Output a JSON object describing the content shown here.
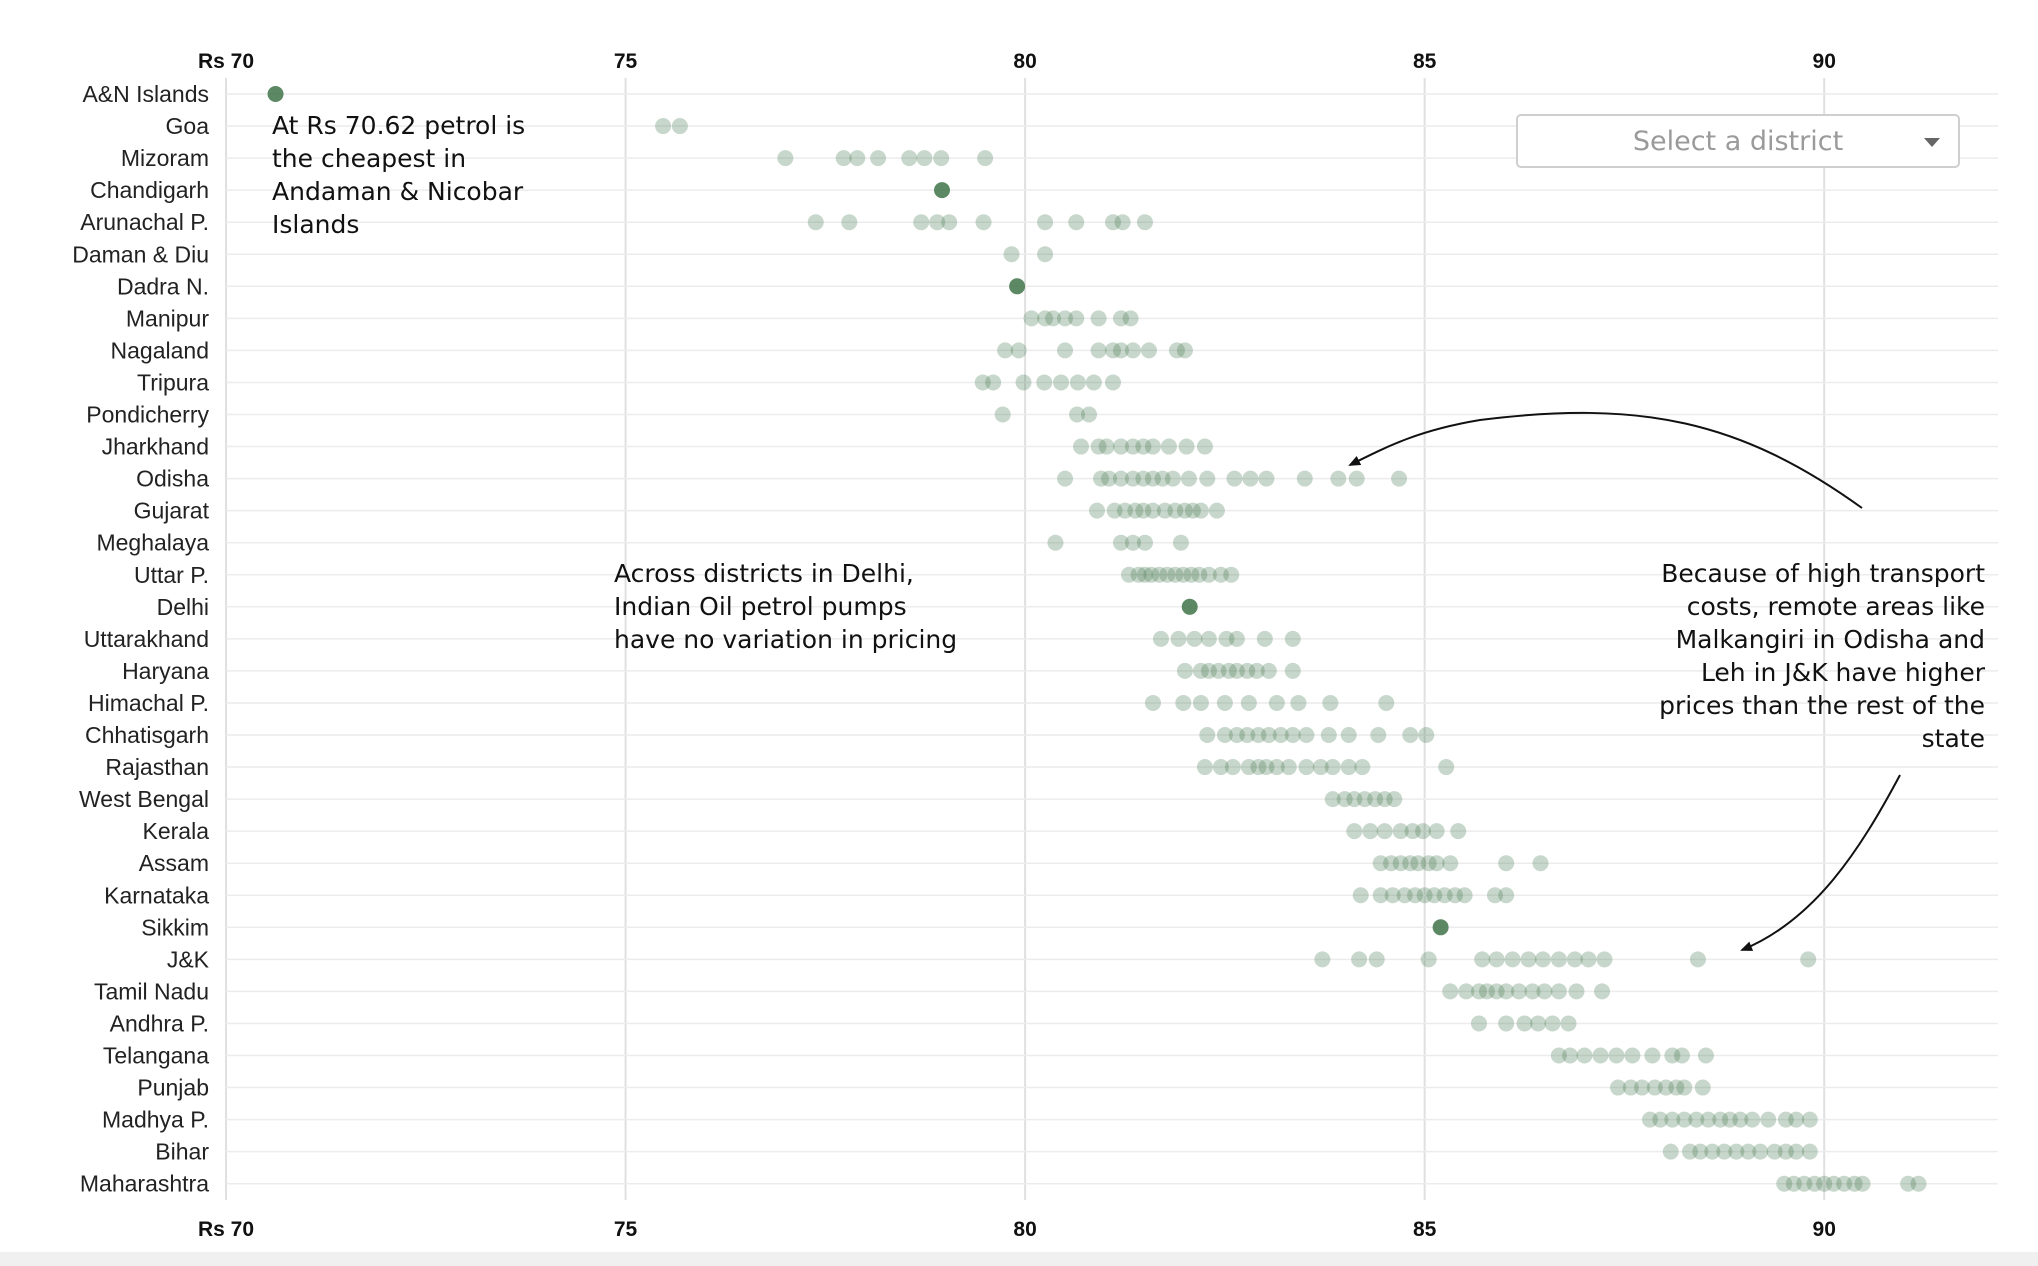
{
  "colors": {
    "dot": "#4a7b52",
    "grid": "#e0e0e0",
    "row": "#ececec",
    "arrow": "#111111"
  },
  "district_select": {
    "placeholder": "Select a district",
    "icon": "chevron-down-icon"
  },
  "annotations": [
    {
      "text": "At Rs 70.62 petrol is the cheapest in Andaman & Nicobar Islands"
    },
    {
      "text": "Across districts in Delhi, Indian Oil petrol pumps have no variation in pricing"
    },
    {
      "text": "Because of high transport costs, remote areas like Malkangiri in Odisha and Leh in J&K have higher prices than the rest of the state"
    }
  ],
  "chart_data": {
    "type": "scatter",
    "title": "",
    "xlabel": "",
    "ylabel": "",
    "xlim": [
      70,
      92.2
    ],
    "x_ticks": [
      70,
      75,
      80,
      85,
      90
    ],
    "x_tick_labels": [
      "Rs 70",
      "75",
      "80",
      "85",
      "90"
    ],
    "grid": true,
    "categories": [
      "A&N Islands",
      "Goa",
      "Mizoram",
      "Chandigarh",
      "Arunachal P.",
      "Daman & Diu",
      "Dadra N.",
      "Manipur",
      "Nagaland",
      "Tripura",
      "Pondicherry",
      "Jharkhand",
      "Odisha",
      "Gujarat",
      "Meghalaya",
      "Uttar P.",
      "Delhi",
      "Uttarakhand",
      "Haryana",
      "Himachal P.",
      "Chhatisgarh",
      "Rajasthan",
      "West Bengal",
      "Kerala",
      "Assam",
      "Karnataka",
      "Sikkim",
      "J&K",
      "Tamil Nadu",
      "Andhra P.",
      "Telangana",
      "Punjab",
      "Madhya P.",
      "Bihar",
      "Maharashtra"
    ],
    "series": [
      {
        "category": "A&N Islands",
        "values": [
          70.62
        ]
      },
      {
        "category": "Goa",
        "values": [
          75.47,
          75.68
        ]
      },
      {
        "category": "Mizoram",
        "values": [
          77.0,
          77.73,
          77.9,
          78.16,
          78.55,
          78.74,
          78.95,
          79.5
        ]
      },
      {
        "category": "Chandigarh",
        "values": [
          78.96
        ]
      },
      {
        "category": "Arunachal P.",
        "values": [
          77.38,
          77.8,
          78.7,
          78.9,
          79.05,
          79.48,
          80.25,
          80.64,
          81.1,
          81.22,
          81.5
        ]
      },
      {
        "category": "Daman & Diu",
        "values": [
          79.83,
          80.25
        ]
      },
      {
        "category": "Dadra N.",
        "values": [
          79.9
        ]
      },
      {
        "category": "Manipur",
        "values": [
          80.08,
          80.25,
          80.35,
          80.5,
          80.64,
          80.92,
          81.2,
          81.32
        ]
      },
      {
        "category": "Nagaland",
        "values": [
          79.75,
          79.92,
          80.5,
          80.92,
          81.1,
          81.2,
          81.35,
          81.55,
          81.9,
          82.0
        ]
      },
      {
        "category": "Tripura",
        "values": [
          79.47,
          79.6,
          79.98,
          80.24,
          80.45,
          80.66,
          80.86,
          81.1
        ]
      },
      {
        "category": "Pondicherry",
        "values": [
          79.72,
          80.65,
          80.8
        ]
      },
      {
        "category": "Jharkhand",
        "values": [
          80.7,
          80.92,
          81.02,
          81.2,
          81.35,
          81.48,
          81.6,
          81.8,
          82.02,
          82.25
        ]
      },
      {
        "category": "Odisha",
        "values": [
          80.5,
          80.95,
          81.05,
          81.2,
          81.35,
          81.48,
          81.6,
          81.72,
          81.85,
          82.05,
          82.28,
          82.62,
          82.82,
          83.02,
          83.5,
          83.92,
          84.15,
          84.68
        ]
      },
      {
        "category": "Gujarat",
        "values": [
          80.9,
          81.12,
          81.25,
          81.38,
          81.48,
          81.6,
          81.75,
          81.88,
          82.0,
          82.1,
          82.2,
          82.4
        ]
      },
      {
        "category": "Meghalaya",
        "values": [
          80.38,
          81.2,
          81.35,
          81.5,
          81.95
        ]
      },
      {
        "category": "Uttar P.",
        "values": [
          81.3,
          81.42,
          81.5,
          81.58,
          81.68,
          81.78,
          81.88,
          81.98,
          82.08,
          82.18,
          82.3,
          82.45,
          82.58
        ]
      },
      {
        "category": "Delhi",
        "values": [
          82.06
        ]
      },
      {
        "category": "Uttarakhand",
        "values": [
          81.7,
          81.92,
          82.12,
          82.3,
          82.52,
          82.65,
          83.0,
          83.35
        ]
      },
      {
        "category": "Haryana",
        "values": [
          82.0,
          82.2,
          82.3,
          82.42,
          82.55,
          82.65,
          82.78,
          82.9,
          83.05,
          83.35
        ]
      },
      {
        "category": "Himachal P.",
        "values": [
          81.6,
          81.98,
          82.2,
          82.5,
          82.8,
          83.15,
          83.42,
          83.82,
          84.52
        ]
      },
      {
        "category": "Chhatisgarh",
        "values": [
          82.28,
          82.5,
          82.65,
          82.78,
          82.92,
          83.05,
          83.2,
          83.35,
          83.52,
          83.8,
          84.05,
          84.42,
          84.82,
          85.02
        ]
      },
      {
        "category": "Rajasthan",
        "values": [
          82.25,
          82.45,
          82.6,
          82.8,
          82.92,
          83.02,
          83.15,
          83.3,
          83.52,
          83.7,
          83.85,
          84.05,
          84.22,
          85.27
        ]
      },
      {
        "category": "West Bengal",
        "values": [
          83.85,
          84.0,
          84.12,
          84.25,
          84.38,
          84.5,
          84.62
        ]
      },
      {
        "category": "Kerala",
        "values": [
          84.12,
          84.32,
          84.5,
          84.7,
          84.85,
          84.98,
          85.15,
          85.42
        ]
      },
      {
        "category": "Assam",
        "values": [
          84.45,
          84.58,
          84.7,
          84.82,
          84.92,
          85.05,
          85.15,
          85.32,
          86.02,
          86.45
        ]
      },
      {
        "category": "Karnataka",
        "values": [
          84.2,
          84.45,
          84.6,
          84.75,
          84.88,
          85.0,
          85.12,
          85.25,
          85.38,
          85.5,
          85.88,
          86.02
        ]
      },
      {
        "category": "Sikkim",
        "values": [
          85.2
        ]
      },
      {
        "category": "J&K",
        "values": [
          83.72,
          84.18,
          84.4,
          85.05,
          85.72,
          85.9,
          86.1,
          86.3,
          86.48,
          86.68,
          86.88,
          87.05,
          87.25,
          88.42,
          89.8
        ]
      },
      {
        "category": "Tamil Nadu",
        "values": [
          85.32,
          85.52,
          85.68,
          85.78,
          85.9,
          86.02,
          86.18,
          86.35,
          86.5,
          86.68,
          86.9,
          87.22
        ]
      },
      {
        "category": "Andhra P.",
        "values": [
          85.68,
          86.02,
          86.25,
          86.42,
          86.6,
          86.8
        ]
      },
      {
        "category": "Telangana",
        "values": [
          86.68,
          86.82,
          87.0,
          87.2,
          87.4,
          87.6,
          87.85,
          88.1,
          88.22,
          88.52
        ]
      },
      {
        "category": "Punjab",
        "values": [
          87.42,
          87.58,
          87.72,
          87.88,
          88.02,
          88.15,
          88.25,
          88.48
        ]
      },
      {
        "category": "Madhya P.",
        "values": [
          87.82,
          87.95,
          88.1,
          88.25,
          88.4,
          88.55,
          88.7,
          88.82,
          88.95,
          89.1,
          89.3,
          89.52,
          89.65,
          89.82
        ]
      },
      {
        "category": "Bihar",
        "values": [
          88.08,
          88.32,
          88.45,
          88.6,
          88.75,
          88.9,
          89.05,
          89.2,
          89.38,
          89.52,
          89.65,
          89.82
        ]
      },
      {
        "category": "Maharashtra",
        "values": [
          89.5,
          89.62,
          89.75,
          89.88,
          90.0,
          90.12,
          90.25,
          90.38,
          90.48,
          91.05,
          91.18
        ]
      }
    ]
  }
}
